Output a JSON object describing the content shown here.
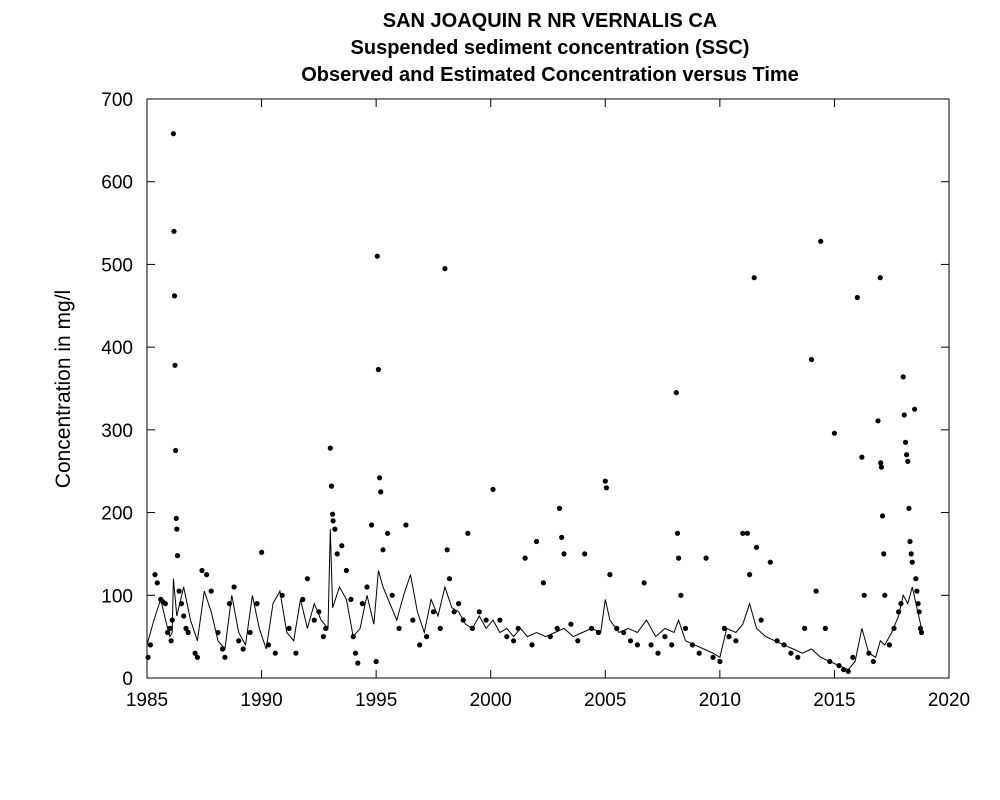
{
  "chart_data": {
    "type": "scatter",
    "title": "SAN JOAQUIN R NR VERNALIS CA",
    "subtitle": "Suspended sediment concentration (SSC)",
    "subtitle2": "Observed and Estimated Concentration versus Time",
    "ylabel": "Concentration in mg/l",
    "xlabel": "",
    "xlim": [
      1985,
      2020
    ],
    "ylim": [
      0,
      700
    ],
    "xticks": [
      1985,
      1990,
      1995,
      2000,
      2005,
      2010,
      2015,
      2020
    ],
    "yticks": [
      0,
      100,
      200,
      300,
      400,
      500,
      600,
      700
    ],
    "grid": false,
    "legend": "none",
    "series": [
      {
        "kind": "observed-points",
        "points": [
          [
            1985.05,
            25
          ],
          [
            1985.15,
            40
          ],
          [
            1985.35,
            125
          ],
          [
            1985.45,
            115
          ],
          [
            1985.6,
            95
          ],
          [
            1985.7,
            92
          ],
          [
            1985.8,
            90
          ],
          [
            1985.9,
            55
          ],
          [
            1986.0,
            60
          ],
          [
            1986.05,
            45
          ],
          [
            1986.1,
            70
          ],
          [
            1986.15,
            658
          ],
          [
            1986.18,
            540
          ],
          [
            1986.2,
            462
          ],
          [
            1986.22,
            378
          ],
          [
            1986.25,
            275
          ],
          [
            1986.28,
            193
          ],
          [
            1986.3,
            180
          ],
          [
            1986.33,
            148
          ],
          [
            1986.4,
            105
          ],
          [
            1986.5,
            90
          ],
          [
            1986.6,
            75
          ],
          [
            1986.7,
            60
          ],
          [
            1986.8,
            55
          ],
          [
            1987.1,
            30
          ],
          [
            1987.2,
            25
          ],
          [
            1987.4,
            130
          ],
          [
            1987.6,
            125
          ],
          [
            1987.8,
            105
          ],
          [
            1988.1,
            55
          ],
          [
            1988.3,
            35
          ],
          [
            1988.4,
            25
          ],
          [
            1988.6,
            90
          ],
          [
            1988.8,
            110
          ],
          [
            1989.0,
            45
          ],
          [
            1989.2,
            35
          ],
          [
            1989.5,
            55
          ],
          [
            1989.8,
            90
          ],
          [
            1990.0,
            152
          ],
          [
            1990.3,
            40
          ],
          [
            1990.6,
            30
          ],
          [
            1990.9,
            100
          ],
          [
            1991.2,
            60
          ],
          [
            1991.5,
            30
          ],
          [
            1991.8,
            95
          ],
          [
            1992.0,
            120
          ],
          [
            1992.3,
            70
          ],
          [
            1992.5,
            80
          ],
          [
            1992.7,
            50
          ],
          [
            1992.8,
            60
          ],
          [
            1993.0,
            278
          ],
          [
            1993.05,
            232
          ],
          [
            1993.1,
            198
          ],
          [
            1993.12,
            190
          ],
          [
            1993.2,
            180
          ],
          [
            1993.3,
            150
          ],
          [
            1993.5,
            160
          ],
          [
            1993.7,
            130
          ],
          [
            1993.9,
            95
          ],
          [
            1994.0,
            50
          ],
          [
            1994.1,
            30
          ],
          [
            1994.2,
            18
          ],
          [
            1994.4,
            90
          ],
          [
            1994.6,
            110
          ],
          [
            1994.8,
            185
          ],
          [
            1995.0,
            20
          ],
          [
            1995.05,
            510
          ],
          [
            1995.1,
            373
          ],
          [
            1995.15,
            242
          ],
          [
            1995.2,
            225
          ],
          [
            1995.3,
            155
          ],
          [
            1995.5,
            175
          ],
          [
            1995.7,
            100
          ],
          [
            1996.0,
            60
          ],
          [
            1996.3,
            185
          ],
          [
            1996.6,
            70
          ],
          [
            1996.9,
            40
          ],
          [
            1997.2,
            50
          ],
          [
            1997.5,
            80
          ],
          [
            1997.8,
            60
          ],
          [
            1998.0,
            495
          ],
          [
            1998.1,
            155
          ],
          [
            1998.2,
            120
          ],
          [
            1998.4,
            80
          ],
          [
            1998.6,
            90
          ],
          [
            1998.8,
            70
          ],
          [
            1999.0,
            175
          ],
          [
            1999.2,
            60
          ],
          [
            1999.5,
            80
          ],
          [
            1999.8,
            70
          ],
          [
            2000.1,
            228
          ],
          [
            2000.4,
            70
          ],
          [
            2000.7,
            50
          ],
          [
            2001.0,
            45
          ],
          [
            2001.2,
            60
          ],
          [
            2001.5,
            145
          ],
          [
            2001.8,
            40
          ],
          [
            2002.0,
            165
          ],
          [
            2002.3,
            115
          ],
          [
            2002.6,
            50
          ],
          [
            2002.9,
            60
          ],
          [
            2003.0,
            205
          ],
          [
            2003.1,
            170
          ],
          [
            2003.2,
            150
          ],
          [
            2003.5,
            65
          ],
          [
            2003.8,
            45
          ],
          [
            2004.1,
            150
          ],
          [
            2004.4,
            60
          ],
          [
            2004.7,
            55
          ],
          [
            2005.0,
            238
          ],
          [
            2005.05,
            230
          ],
          [
            2005.2,
            125
          ],
          [
            2005.5,
            60
          ],
          [
            2005.8,
            55
          ],
          [
            2006.1,
            45
          ],
          [
            2006.4,
            40
          ],
          [
            2006.7,
            115
          ],
          [
            2007.0,
            40
          ],
          [
            2007.3,
            30
          ],
          [
            2007.6,
            50
          ],
          [
            2007.9,
            40
          ],
          [
            2008.1,
            345
          ],
          [
            2008.15,
            175
          ],
          [
            2008.2,
            145
          ],
          [
            2008.3,
            100
          ],
          [
            2008.5,
            60
          ],
          [
            2008.8,
            40
          ],
          [
            2009.1,
            30
          ],
          [
            2009.4,
            145
          ],
          [
            2009.7,
            25
          ],
          [
            2010.0,
            20
          ],
          [
            2010.2,
            60
          ],
          [
            2010.4,
            50
          ],
          [
            2010.7,
            45
          ],
          [
            2011.0,
            175
          ],
          [
            2011.2,
            175
          ],
          [
            2011.3,
            125
          ],
          [
            2011.5,
            484
          ],
          [
            2011.6,
            158
          ],
          [
            2011.8,
            70
          ],
          [
            2012.2,
            140
          ],
          [
            2012.5,
            45
          ],
          [
            2012.8,
            40
          ],
          [
            2013.1,
            30
          ],
          [
            2013.4,
            25
          ],
          [
            2013.7,
            60
          ],
          [
            2014.0,
            385
          ],
          [
            2014.2,
            105
          ],
          [
            2014.4,
            528
          ],
          [
            2014.6,
            60
          ],
          [
            2014.8,
            20
          ],
          [
            2015.0,
            296
          ],
          [
            2015.2,
            15
          ],
          [
            2015.4,
            10
          ],
          [
            2015.6,
            8
          ],
          [
            2015.8,
            25
          ],
          [
            2016.0,
            460
          ],
          [
            2016.2,
            267
          ],
          [
            2016.3,
            100
          ],
          [
            2016.5,
            30
          ],
          [
            2016.7,
            20
          ],
          [
            2016.9,
            311
          ],
          [
            2017.0,
            484
          ],
          [
            2017.02,
            260
          ],
          [
            2017.05,
            255
          ],
          [
            2017.1,
            196
          ],
          [
            2017.15,
            150
          ],
          [
            2017.2,
            100
          ],
          [
            2017.4,
            40
          ],
          [
            2017.6,
            60
          ],
          [
            2017.8,
            80
          ],
          [
            2017.9,
            90
          ],
          [
            2018.0,
            364
          ],
          [
            2018.05,
            318
          ],
          [
            2018.1,
            285
          ],
          [
            2018.15,
            270
          ],
          [
            2018.2,
            262
          ],
          [
            2018.25,
            205
          ],
          [
            2018.3,
            165
          ],
          [
            2018.35,
            150
          ],
          [
            2018.4,
            140
          ],
          [
            2018.5,
            325
          ],
          [
            2018.55,
            120
          ],
          [
            2018.6,
            105
          ],
          [
            2018.65,
            90
          ],
          [
            2018.7,
            80
          ],
          [
            2018.75,
            60
          ],
          [
            2018.8,
            55
          ]
        ]
      },
      {
        "kind": "estimated-line",
        "points": [
          [
            1985.0,
            40
          ],
          [
            1985.3,
            70
          ],
          [
            1985.6,
            95
          ],
          [
            1985.9,
            60
          ],
          [
            1986.0,
            50
          ],
          [
            1986.1,
            55
          ],
          [
            1986.15,
            120
          ],
          [
            1986.3,
            75
          ],
          [
            1986.6,
            110
          ],
          [
            1986.9,
            70
          ],
          [
            1987.2,
            45
          ],
          [
            1987.5,
            105
          ],
          [
            1987.8,
            80
          ],
          [
            1988.1,
            45
          ],
          [
            1988.4,
            35
          ],
          [
            1988.7,
            100
          ],
          [
            1989.0,
            55
          ],
          [
            1989.3,
            40
          ],
          [
            1989.6,
            100
          ],
          [
            1989.9,
            60
          ],
          [
            1990.2,
            35
          ],
          [
            1990.5,
            90
          ],
          [
            1990.8,
            105
          ],
          [
            1991.1,
            55
          ],
          [
            1991.4,
            45
          ],
          [
            1991.7,
            95
          ],
          [
            1992.0,
            60
          ],
          [
            1992.3,
            90
          ],
          [
            1992.6,
            70
          ],
          [
            1992.9,
            60
          ],
          [
            1993.0,
            180
          ],
          [
            1993.1,
            85
          ],
          [
            1993.4,
            110
          ],
          [
            1993.7,
            95
          ],
          [
            1994.0,
            50
          ],
          [
            1994.3,
            60
          ],
          [
            1994.6,
            100
          ],
          [
            1994.9,
            65
          ],
          [
            1995.1,
            130
          ],
          [
            1995.3,
            110
          ],
          [
            1995.6,
            90
          ],
          [
            1995.9,
            70
          ],
          [
            1996.2,
            100
          ],
          [
            1996.5,
            125
          ],
          [
            1996.8,
            80
          ],
          [
            1997.1,
            55
          ],
          [
            1997.4,
            95
          ],
          [
            1997.7,
            75
          ],
          [
            1998.0,
            110
          ],
          [
            1998.3,
            85
          ],
          [
            1998.6,
            80
          ],
          [
            1998.9,
            65
          ],
          [
            1999.2,
            60
          ],
          [
            1999.5,
            75
          ],
          [
            1999.8,
            60
          ],
          [
            2000.1,
            70
          ],
          [
            2000.4,
            55
          ],
          [
            2000.7,
            60
          ],
          [
            2001.0,
            50
          ],
          [
            2001.3,
            60
          ],
          [
            2001.6,
            50
          ],
          [
            2002.0,
            55
          ],
          [
            2002.4,
            50
          ],
          [
            2002.8,
            55
          ],
          [
            2003.2,
            60
          ],
          [
            2003.6,
            50
          ],
          [
            2004.0,
            55
          ],
          [
            2004.4,
            60
          ],
          [
            2004.8,
            55
          ],
          [
            2005.0,
            95
          ],
          [
            2005.2,
            70
          ],
          [
            2005.6,
            55
          ],
          [
            2006.0,
            60
          ],
          [
            2006.4,
            55
          ],
          [
            2006.8,
            70
          ],
          [
            2007.2,
            50
          ],
          [
            2007.6,
            60
          ],
          [
            2008.0,
            55
          ],
          [
            2008.2,
            70
          ],
          [
            2008.5,
            45
          ],
          [
            2008.9,
            40
          ],
          [
            2009.3,
            35
          ],
          [
            2009.7,
            30
          ],
          [
            2010.0,
            25
          ],
          [
            2010.3,
            60
          ],
          [
            2010.7,
            55
          ],
          [
            2011.0,
            65
          ],
          [
            2011.3,
            90
          ],
          [
            2011.6,
            60
          ],
          [
            2012.0,
            50
          ],
          [
            2012.4,
            45
          ],
          [
            2012.8,
            40
          ],
          [
            2013.2,
            35
          ],
          [
            2013.6,
            30
          ],
          [
            2014.0,
            35
          ],
          [
            2014.4,
            25
          ],
          [
            2014.8,
            20
          ],
          [
            2015.2,
            15
          ],
          [
            2015.6,
            10
          ],
          [
            2015.9,
            20
          ],
          [
            2016.2,
            60
          ],
          [
            2016.5,
            30
          ],
          [
            2016.8,
            25
          ],
          [
            2017.0,
            45
          ],
          [
            2017.2,
            40
          ],
          [
            2017.5,
            55
          ],
          [
            2017.8,
            75
          ],
          [
            2018.0,
            100
          ],
          [
            2018.2,
            90
          ],
          [
            2018.4,
            110
          ],
          [
            2018.6,
            85
          ],
          [
            2018.8,
            60
          ]
        ]
      }
    ]
  }
}
